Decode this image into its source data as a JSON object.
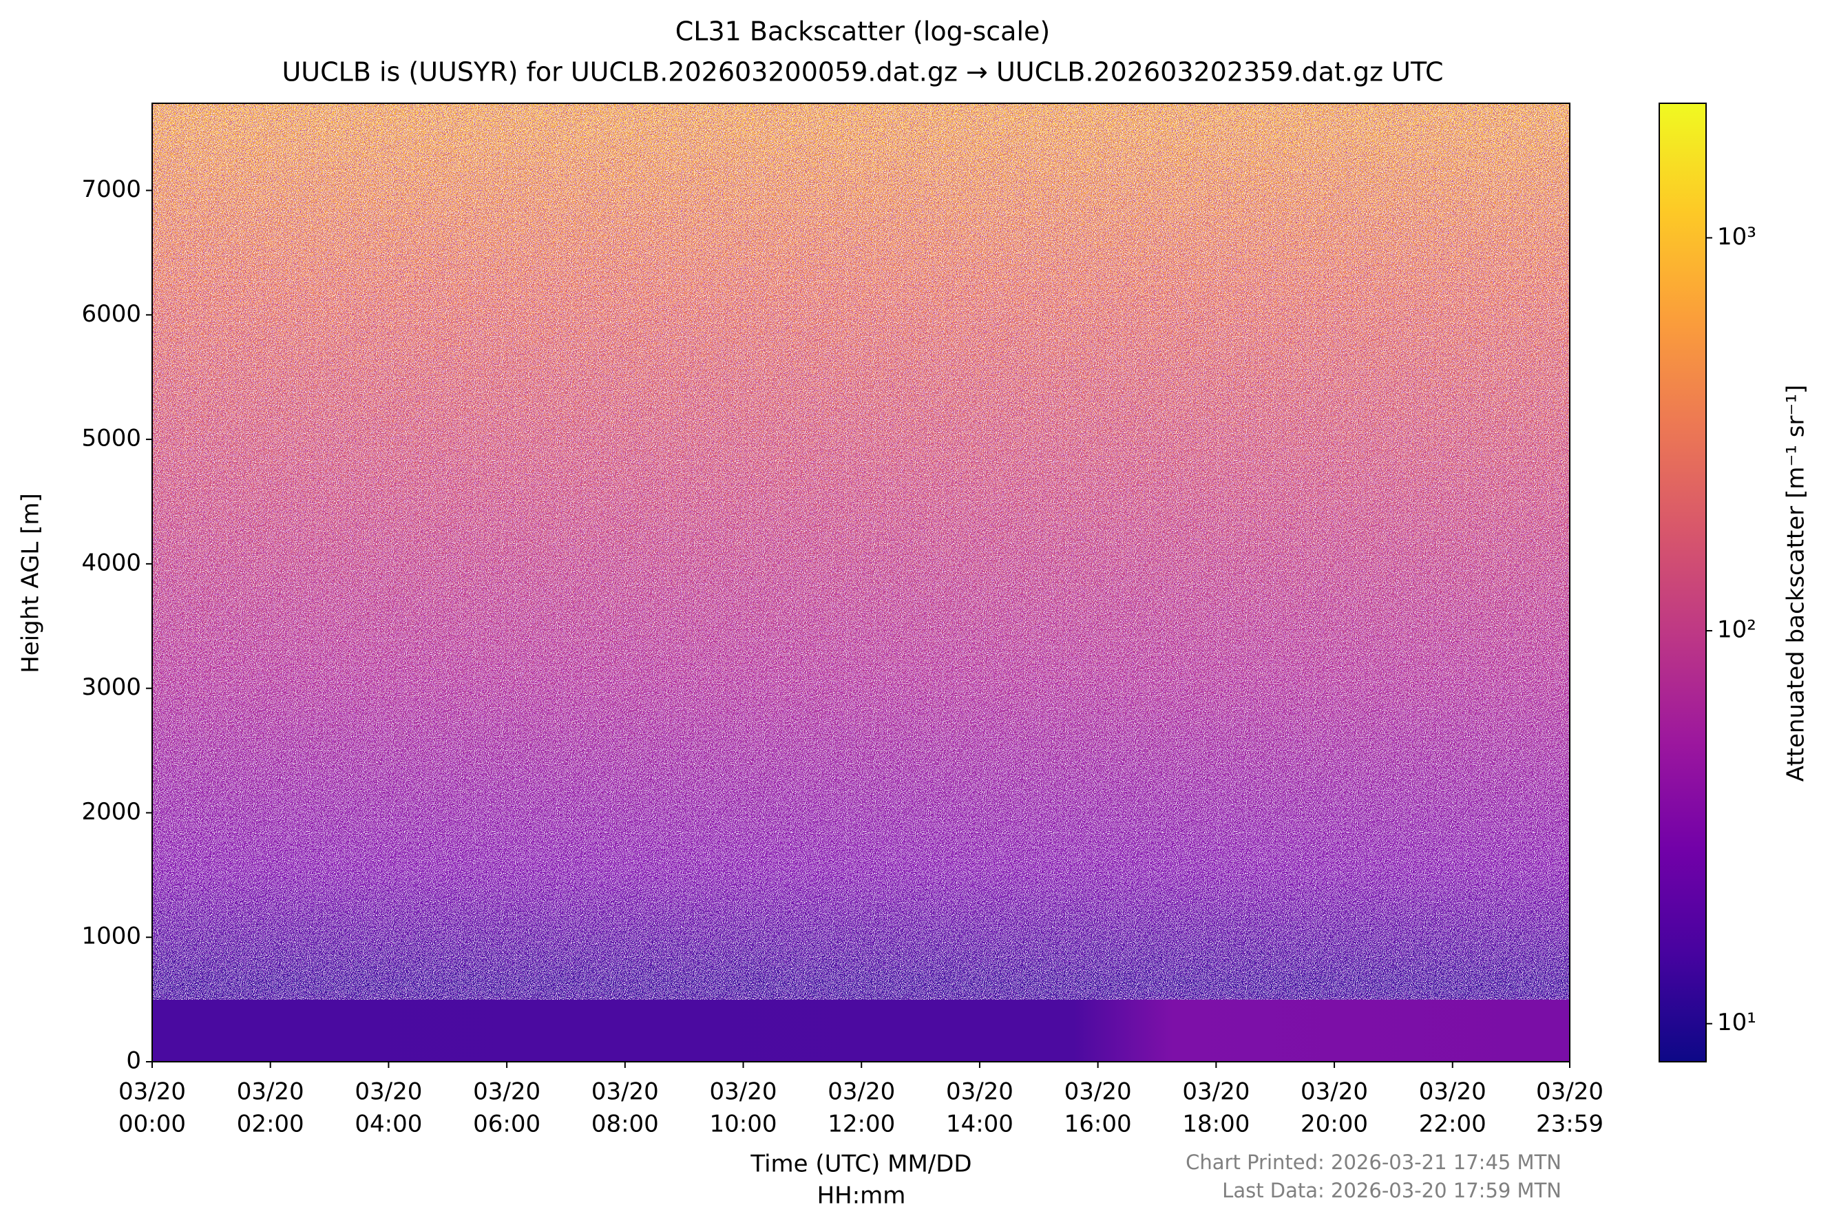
{
  "chart_data": {
    "type": "heatmap",
    "title": "CL31 Backscatter (log-scale)",
    "subtitle": "UUCLB is (UUSYR) for UUCLB.202603200059.dat.gz → UUCLB.202603202359.dat.gz UTC",
    "xlabel": [
      "Time (UTC) MM/DD",
      "HH:mm"
    ],
    "ylabel": "Height AGL [m]",
    "xlim": [
      0,
      23.983
    ],
    "xticks": [
      {
        "value": 0,
        "label": [
          "03/20",
          "00:00"
        ]
      },
      {
        "value": 2,
        "label": [
          "03/20",
          "02:00"
        ]
      },
      {
        "value": 4,
        "label": [
          "03/20",
          "04:00"
        ]
      },
      {
        "value": 6,
        "label": [
          "03/20",
          "06:00"
        ]
      },
      {
        "value": 8,
        "label": [
          "03/20",
          "08:00"
        ]
      },
      {
        "value": 10,
        "label": [
          "03/20",
          "10:00"
        ]
      },
      {
        "value": 12,
        "label": [
          "03/20",
          "12:00"
        ]
      },
      {
        "value": 14,
        "label": [
          "03/20",
          "14:00"
        ]
      },
      {
        "value": 16,
        "label": [
          "03/20",
          "16:00"
        ]
      },
      {
        "value": 18,
        "label": [
          "03/20",
          "18:00"
        ]
      },
      {
        "value": 20,
        "label": [
          "03/20",
          "20:00"
        ]
      },
      {
        "value": 22,
        "label": [
          "03/20",
          "22:00"
        ]
      },
      {
        "value": 23.983,
        "label": [
          "03/20",
          "23:59"
        ]
      }
    ],
    "ylim": [
      0,
      7700
    ],
    "yticks": [
      0,
      1000,
      2000,
      3000,
      4000,
      5000,
      6000,
      7000
    ],
    "colormap": "plasma",
    "colorbar": {
      "label": "Attenuated backscatter [m⁻¹ sr⁻¹]",
      "log": true,
      "lim": [
        8,
        2200
      ],
      "ticks": [
        {
          "value": 10,
          "label": "10¹"
        },
        {
          "value": 100,
          "label": "10²"
        },
        {
          "value": 1000,
          "label": "10³"
        }
      ]
    },
    "notes": [
      "Chart Printed: 2026-03-21 17:45 MTN",
      "Last Data: 2026-03-20 17:59 MTN"
    ]
  }
}
